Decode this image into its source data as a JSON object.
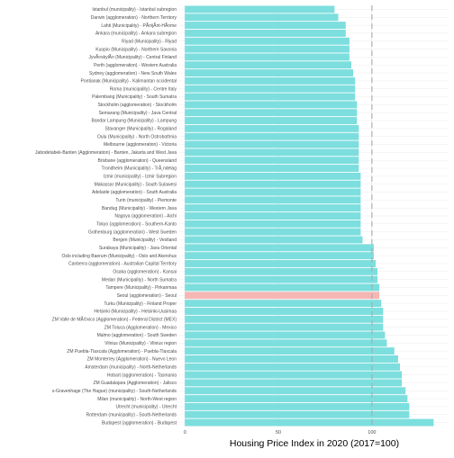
{
  "chart_data": {
    "type": "bar",
    "orientation": "horizontal",
    "title": "",
    "xlabel": "Housing Price Index in 2020 (2017=100)",
    "ylabel": "",
    "xlim": [
      -3,
      141
    ],
    "xticks": [
      0,
      50,
      100
    ],
    "reference_line": 100,
    "grid": true,
    "legend": "none",
    "colors": {
      "default": "#7ddede",
      "highlight": "#f4b7b5",
      "reference": "#aaaaaa",
      "grid": "#ebebeb"
    },
    "highlight": "Seoul (agglomeration) - Seoul",
    "categories": [
      "Istanbul (municipality) - Istanbul subregion",
      "Darwin (agglomeration) - Northern Territory",
      "Lahti (Municipality) - PÃ¤ijÃ¤t-HÃ¤me",
      "Ankara (municipality) - Ankara subregion",
      "Riyad (Municipality) - Riyad",
      "Kuopio (Municipality) - Northern Savonia",
      "JyvÃ¤skylÃ¤ (Municipality) - Central Finland",
      "Perth (agglomeration) - Western Australia",
      "Sydney (agglomeration) - New South Wales",
      "Pontianak (Municipality) - Kalimantan occidental",
      "Roma (municipality) - Centre Italy",
      "Palembang (Municipality) - South Sumatra",
      "Stockholm (agglomeration) - Stockholm",
      "Semarang (Municipality) - Java Central",
      "Bandar Lampung (Municipality) - Lampung",
      "Stavanger (Municipality) - Rogaland",
      "Oulu (Municipality) - North Ostrobothnia",
      "Melbourne (agglomeration) - Victoria",
      "Jabodetabek-Banten (Agglomeration) - Banten, Jakarta and West Java",
      "Brisbane (agglomeration) - Queensland",
      "Trondheim (Municipality) - TrÃ¸ndelag",
      "Izmir (municipality) - Izmir Subregion",
      "Makassar (Municipality) - South Sulawesi",
      "Adelaide (agglomeration) - South Australia",
      "Turin (municipality) - Piemonte",
      "Bandug (Municipality) - Western Java",
      "Nagoya (agglomeration) - Aichi",
      "Tokyo (agglomeration) - Southern-Kanto",
      "Gothenburg (agglomeration) - West Sweden",
      "Bergen (Municipality) - Vestland",
      "Surabaya (Municipality) - Java Oriental",
      "Oslo including Baerum (Municipality) - Oslo and Akershus",
      "Canberra (agglomeration) - Australian Capital Territory",
      "Osaka (agglomeration) - Kansai",
      "Medan (Municipality) - North Sumatra",
      "Tampere (Municipality) - Pirkanmaa",
      "Seoul (agglomeration) - Seoul",
      "Turku (Municipality) - Finland Proper",
      "Helsinki (Municipality) - Helsinki-Uusimaa",
      "ZM Valle de MÃ©xico (Agglomeration) - Federal District (MEX)",
      "ZM Toluca (Agglomeration) - Mexico",
      "Malmo (agglomeration) - South Sweden",
      "Vilnius (Municipality) - Vilnius region",
      "ZM Puebla-Tlaxcala (Agglomeration) - Puebla-Tlaxcala",
      "ZM Monterrey (Agglomeration) - Nuevo Leon",
      "Amsterdam  (municipality) - North-Netherlands",
      "Hobart (agglomeration) - Tasmania",
      "ZM Guadalajara (Agglomeration) - Jalisco",
      "s-Gravenhage (The Hague) (municipality) - South-Netherlands",
      "Milan (municipality) - North-West region",
      "Utrecht  (municipality) - Utrecht",
      "Rotterdam (municipality) - South-Netherlands",
      "Budapest (agglomeration) - Budapest"
    ],
    "values": [
      80,
      82,
      86,
      86,
      88,
      88,
      88,
      89,
      90,
      91,
      91,
      91,
      92,
      92,
      92,
      93,
      93,
      93,
      93,
      93,
      93,
      94,
      94,
      94,
      94,
      94,
      94,
      94,
      94,
      95,
      101,
      101,
      102,
      103,
      103,
      104,
      104,
      105,
      106,
      106,
      106,
      107,
      108,
      112,
      114,
      115,
      116,
      116,
      118,
      119,
      120,
      120,
      133
    ]
  }
}
